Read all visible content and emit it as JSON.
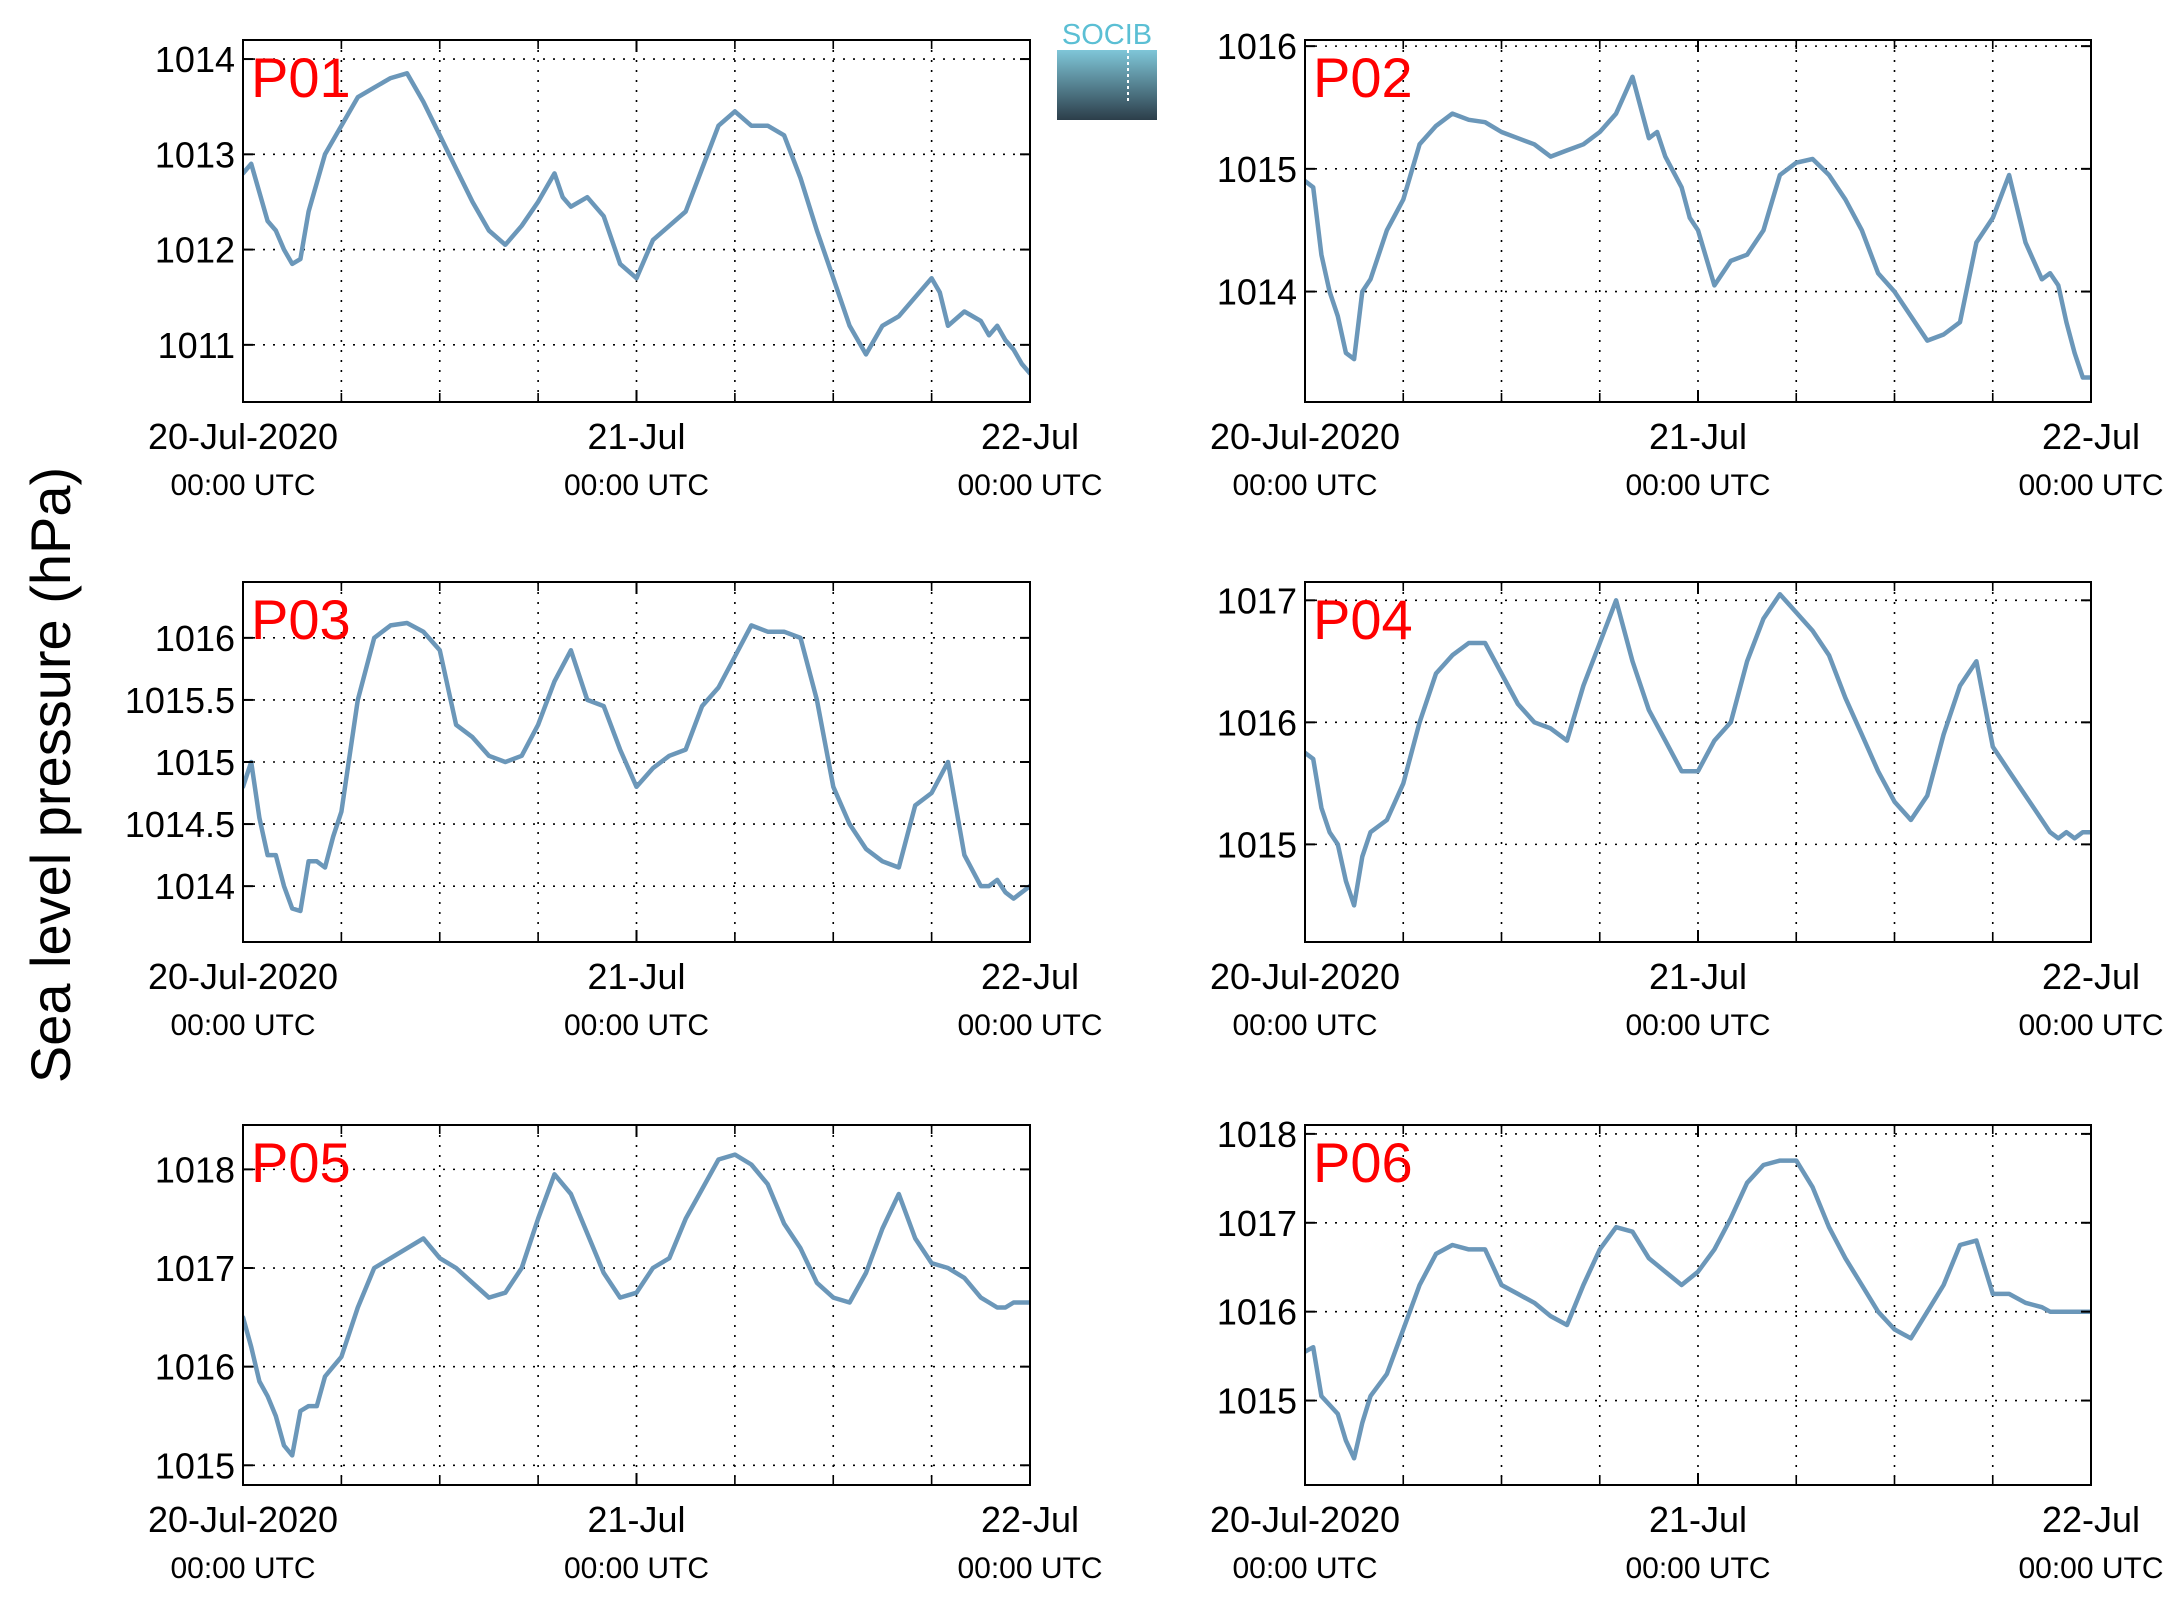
{
  "figure": {
    "ylabel": "Sea level pressure (hPa)",
    "line_color": "#6b97b9",
    "label_color": "#ff0000",
    "logo_text": "SOCIB",
    "logo_colors": {
      "text": "#5bbfd4",
      "top": "#7fc6d8",
      "bottom": "#2c3e4a"
    }
  },
  "chart_data": [
    {
      "type": "line",
      "title": "P01",
      "xlim": [
        0,
        48
      ],
      "ylim": [
        1010.4,
        1014.2
      ],
      "yticks": [
        1011,
        1012,
        1013,
        1014
      ],
      "ytick_labels": [
        "1011",
        "1012",
        "1013",
        "1014"
      ],
      "xticks": [
        0,
        24,
        48
      ],
      "xtick_labels": [
        "20-Jul-2020",
        "21-Jul",
        "22-Jul"
      ],
      "xtick_sublabels": [
        "00:00 UTC",
        "00:00 UTC",
        "00:00 UTC"
      ],
      "grid": true,
      "series": [
        {
          "x": [
            0,
            0.5,
            1,
            1.5,
            2,
            2.5,
            3,
            3.5,
            4,
            5,
            6,
            7,
            8,
            9,
            10,
            11,
            12,
            13,
            14,
            15,
            16,
            17,
            18,
            19,
            19.5,
            20,
            21,
            22,
            23,
            24,
            25,
            26,
            27,
            28,
            29,
            30,
            31,
            32,
            33,
            34,
            35,
            36,
            37,
            38,
            39,
            40,
            41,
            42,
            42.5,
            43,
            44,
            45,
            45.5,
            46,
            46.5,
            47,
            47.5,
            48
          ],
          "y": [
            1012.8,
            1012.9,
            1012.6,
            1012.3,
            1012.2,
            1012.0,
            1011.85,
            1011.9,
            1012.4,
            1013.0,
            1013.3,
            1013.6,
            1013.7,
            1013.8,
            1013.85,
            1013.55,
            1013.2,
            1012.85,
            1012.5,
            1012.2,
            1012.05,
            1012.25,
            1012.5,
            1012.8,
            1012.55,
            1012.45,
            1012.55,
            1012.35,
            1011.85,
            1011.7,
            1012.1,
            1012.25,
            1012.4,
            1012.85,
            1013.3,
            1013.45,
            1013.3,
            1013.3,
            1013.2,
            1012.75,
            1012.2,
            1011.7,
            1011.2,
            1010.9,
            1011.2,
            1011.3,
            1011.5,
            1011.7,
            1011.55,
            1011.2,
            1011.35,
            1011.25,
            1011.1,
            1011.2,
            1011.05,
            1010.95,
            1010.8,
            1010.7
          ]
        }
      ]
    },
    {
      "type": "line",
      "title": "P02",
      "xlim": [
        0,
        48
      ],
      "ylim": [
        1013.1,
        1016.05
      ],
      "yticks": [
        1014,
        1015,
        1016
      ],
      "ytick_labels": [
        "1014",
        "1015",
        "1016"
      ],
      "xticks": [
        0,
        24,
        48
      ],
      "xtick_labels": [
        "20-Jul-2020",
        "21-Jul",
        "22-Jul"
      ],
      "xtick_sublabels": [
        "00:00 UTC",
        "00:00 UTC",
        "00:00 UTC"
      ],
      "grid": true,
      "series": [
        {
          "x": [
            0,
            0.5,
            1,
            1.5,
            2,
            2.5,
            3,
            3.5,
            4,
            5,
            6,
            7,
            8,
            9,
            10,
            11,
            12,
            13,
            14,
            15,
            16,
            17,
            18,
            19,
            20,
            21,
            21.5,
            22,
            23,
            23.5,
            24,
            25,
            26,
            27,
            28,
            29,
            30,
            31,
            32,
            33,
            34,
            35,
            36,
            37,
            38,
            39,
            40,
            41,
            42,
            43,
            44,
            45,
            45.5,
            46,
            46.5,
            47,
            47.5,
            48
          ],
          "y": [
            1014.9,
            1014.85,
            1014.3,
            1014.0,
            1013.8,
            1013.5,
            1013.45,
            1014.0,
            1014.1,
            1014.5,
            1014.75,
            1015.2,
            1015.35,
            1015.45,
            1015.4,
            1015.38,
            1015.3,
            1015.25,
            1015.2,
            1015.1,
            1015.15,
            1015.2,
            1015.3,
            1015.45,
            1015.75,
            1015.25,
            1015.3,
            1015.1,
            1014.85,
            1014.6,
            1014.5,
            1014.05,
            1014.25,
            1014.3,
            1014.5,
            1014.95,
            1015.05,
            1015.08,
            1014.95,
            1014.75,
            1014.5,
            1014.15,
            1014.0,
            1013.8,
            1013.6,
            1013.65,
            1013.75,
            1014.4,
            1014.6,
            1014.95,
            1014.4,
            1014.1,
            1014.15,
            1014.05,
            1013.75,
            1013.5,
            1013.3,
            1013.3
          ]
        }
      ]
    },
    {
      "type": "line",
      "title": "P03",
      "xlim": [
        0,
        48
      ],
      "ylim": [
        1013.55,
        1016.45
      ],
      "yticks": [
        1014,
        1014.5,
        1015,
        1015.5,
        1016
      ],
      "ytick_labels": [
        "1014",
        "1014.5",
        "1015",
        "1015.5",
        "1016"
      ],
      "xticks": [
        0,
        24,
        48
      ],
      "xtick_labels": [
        "20-Jul-2020",
        "21-Jul",
        "22-Jul"
      ],
      "xtick_sublabels": [
        "00:00 UTC",
        "00:00 UTC",
        "00:00 UTC"
      ],
      "grid": true,
      "series": [
        {
          "x": [
            0,
            0.5,
            1,
            1.5,
            2,
            2.5,
            3,
            3.5,
            4,
            4.5,
            5,
            5.5,
            6,
            7,
            8,
            9,
            10,
            11,
            12,
            13,
            14,
            15,
            16,
            17,
            18,
            19,
            20,
            21,
            22,
            23,
            24,
            25,
            26,
            27,
            28,
            29,
            30,
            31,
            32,
            33,
            34,
            35,
            36,
            37,
            38,
            39,
            40,
            41,
            42,
            43,
            44,
            45,
            45.5,
            46,
            46.5,
            47,
            47.5,
            48
          ],
          "y": [
            1014.8,
            1015.0,
            1014.55,
            1014.25,
            1014.25,
            1014.0,
            1013.82,
            1013.8,
            1014.2,
            1014.2,
            1014.15,
            1014.4,
            1014.6,
            1015.5,
            1016.0,
            1016.1,
            1016.12,
            1016.05,
            1015.9,
            1015.3,
            1015.2,
            1015.05,
            1015.0,
            1015.05,
            1015.3,
            1015.65,
            1015.9,
            1015.5,
            1015.45,
            1015.1,
            1014.8,
            1014.95,
            1015.05,
            1015.1,
            1015.45,
            1015.6,
            1015.85,
            1016.1,
            1016.05,
            1016.05,
            1016.0,
            1015.5,
            1014.8,
            1014.5,
            1014.3,
            1014.2,
            1014.15,
            1014.65,
            1014.75,
            1015.0,
            1014.25,
            1014.0,
            1014.0,
            1014.05,
            1013.95,
            1013.9,
            1013.95,
            1014.0
          ]
        }
      ]
    },
    {
      "type": "line",
      "title": "P04",
      "xlim": [
        0,
        48
      ],
      "ylim": [
        1014.2,
        1017.15
      ],
      "yticks": [
        1015,
        1016,
        1017
      ],
      "ytick_labels": [
        "1015",
        "1016",
        "1017"
      ],
      "xticks": [
        0,
        24,
        48
      ],
      "xtick_labels": [
        "20-Jul-2020",
        "21-Jul",
        "22-Jul"
      ],
      "xtick_sublabels": [
        "00:00 UTC",
        "00:00 UTC",
        "00:00 UTC"
      ],
      "grid": true,
      "series": [
        {
          "x": [
            0,
            0.5,
            1,
            1.5,
            2,
            2.5,
            3,
            3.5,
            4,
            5,
            6,
            7,
            8,
            9,
            10,
            11,
            12,
            13,
            14,
            15,
            16,
            17,
            18,
            19,
            20,
            21,
            22,
            23,
            24,
            25,
            26,
            27,
            28,
            29,
            30,
            31,
            32,
            33,
            34,
            35,
            36,
            37,
            38,
            39,
            40,
            41,
            42,
            43,
            44,
            45,
            45.5,
            46,
            46.5,
            47,
            47.5,
            48
          ],
          "y": [
            1015.75,
            1015.7,
            1015.3,
            1015.1,
            1015.0,
            1014.7,
            1014.5,
            1014.9,
            1015.1,
            1015.2,
            1015.5,
            1016.0,
            1016.4,
            1016.55,
            1016.65,
            1016.65,
            1016.4,
            1016.15,
            1016.0,
            1015.95,
            1015.85,
            1016.3,
            1016.65,
            1017.0,
            1016.5,
            1016.1,
            1015.85,
            1015.6,
            1015.6,
            1015.85,
            1016.0,
            1016.5,
            1016.85,
            1017.05,
            1016.9,
            1016.75,
            1016.55,
            1016.2,
            1015.9,
            1015.6,
            1015.35,
            1015.2,
            1015.4,
            1015.9,
            1016.3,
            1016.5,
            1015.8,
            1015.6,
            1015.4,
            1015.2,
            1015.1,
            1015.05,
            1015.1,
            1015.05,
            1015.1,
            1015.1
          ]
        }
      ]
    },
    {
      "type": "line",
      "title": "P05",
      "xlim": [
        0,
        48
      ],
      "ylim": [
        1014.8,
        1018.45
      ],
      "yticks": [
        1015,
        1016,
        1017,
        1018
      ],
      "ytick_labels": [
        "1015",
        "1016",
        "1017",
        "1018"
      ],
      "xticks": [
        0,
        24,
        48
      ],
      "xtick_labels": [
        "20-Jul-2020",
        "21-Jul",
        "22-Jul"
      ],
      "xtick_sublabels": [
        "00:00 UTC",
        "00:00 UTC",
        "00:00 UTC"
      ],
      "grid": true,
      "series": [
        {
          "x": [
            0,
            0.5,
            1,
            1.5,
            2,
            2.5,
            3,
            3.5,
            4,
            4.5,
            5,
            5.5,
            6,
            7,
            8,
            9,
            10,
            11,
            12,
            13,
            14,
            15,
            16,
            17,
            18,
            19,
            20,
            21,
            22,
            23,
            24,
            25,
            26,
            27,
            28,
            29,
            30,
            31,
            32,
            33,
            34,
            35,
            36,
            37,
            38,
            39,
            40,
            41,
            42,
            43,
            44,
            45,
            45.5,
            46,
            46.5,
            47,
            47.5,
            48
          ],
          "y": [
            1016.5,
            1016.2,
            1015.85,
            1015.7,
            1015.5,
            1015.2,
            1015.1,
            1015.55,
            1015.6,
            1015.6,
            1015.9,
            1016.0,
            1016.1,
            1016.6,
            1017.0,
            1017.1,
            1017.2,
            1017.3,
            1017.1,
            1017.0,
            1016.85,
            1016.7,
            1016.75,
            1017.0,
            1017.5,
            1017.95,
            1017.75,
            1017.35,
            1016.95,
            1016.7,
            1016.75,
            1017.0,
            1017.1,
            1017.5,
            1017.8,
            1018.1,
            1018.15,
            1018.05,
            1017.85,
            1017.45,
            1017.2,
            1016.85,
            1016.7,
            1016.65,
            1016.95,
            1017.4,
            1017.75,
            1017.3,
            1017.05,
            1017.0,
            1016.9,
            1016.7,
            1016.65,
            1016.6,
            1016.6,
            1016.65,
            1016.65,
            1016.65
          ]
        }
      ]
    },
    {
      "type": "line",
      "title": "P06",
      "xlim": [
        0,
        48
      ],
      "ylim": [
        1014.05,
        1018.1
      ],
      "yticks": [
        1015,
        1016,
        1017,
        1018
      ],
      "ytick_labels": [
        "1015",
        "1016",
        "1017",
        "1018"
      ],
      "xticks": [
        0,
        24,
        48
      ],
      "xtick_labels": [
        "20-Jul-2020",
        "21-Jul",
        "22-Jul"
      ],
      "xtick_sublabels": [
        "00:00 UTC",
        "00:00 UTC",
        "00:00 UTC"
      ],
      "grid": true,
      "series": [
        {
          "x": [
            0,
            0.5,
            1,
            1.5,
            2,
            2.5,
            3,
            3.5,
            4,
            5,
            6,
            7,
            8,
            9,
            10,
            11,
            12,
            13,
            14,
            15,
            16,
            17,
            18,
            19,
            20,
            21,
            22,
            23,
            24,
            25,
            26,
            27,
            28,
            29,
            30,
            31,
            32,
            33,
            34,
            35,
            36,
            37,
            38,
            39,
            40,
            41,
            42,
            43,
            44,
            45,
            45.5,
            46,
            46.5,
            47,
            47.5,
            48
          ],
          "y": [
            1015.55,
            1015.6,
            1015.05,
            1014.95,
            1014.85,
            1014.55,
            1014.35,
            1014.75,
            1015.05,
            1015.3,
            1015.8,
            1016.3,
            1016.65,
            1016.75,
            1016.7,
            1016.7,
            1016.3,
            1016.2,
            1016.1,
            1015.95,
            1015.85,
            1016.3,
            1016.7,
            1016.95,
            1016.9,
            1016.6,
            1016.45,
            1016.3,
            1016.45,
            1016.7,
            1017.05,
            1017.45,
            1017.65,
            1017.7,
            1017.7,
            1017.4,
            1016.95,
            1016.6,
            1016.3,
            1016.0,
            1015.8,
            1015.7,
            1016.0,
            1016.3,
            1016.75,
            1016.8,
            1016.2,
            1016.2,
            1016.1,
            1016.05,
            1016.0,
            1016.0,
            1016.0,
            1016.0,
            1016.0,
            1016.0
          ]
        }
      ]
    }
  ]
}
